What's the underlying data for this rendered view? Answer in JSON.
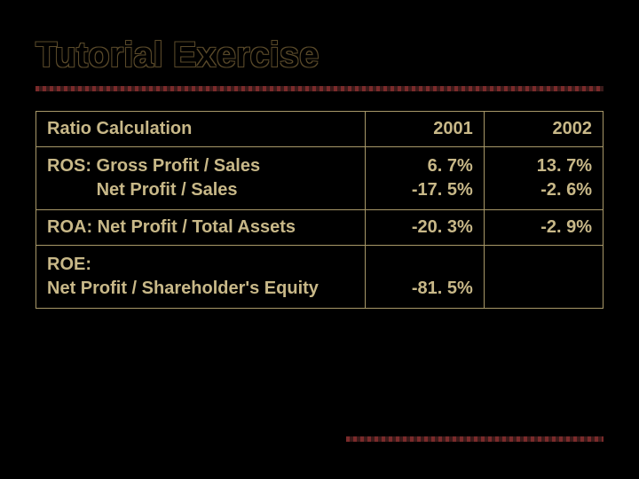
{
  "slide": {
    "title": "Tutorial Exercise",
    "background_color": "#000000",
    "title_color_fill": "#000000",
    "title_outline_color": "#5a4a2a",
    "text_color": "#c8b888",
    "border_color": "#a89868",
    "divider_color_a": "#7a2a2a",
    "divider_color_b": "#3a1a1a",
    "title_fontsize": 40,
    "cell_fontsize": 20
  },
  "table": {
    "columns": [
      "Ratio Calculation",
      "2001",
      "2002"
    ],
    "col_widths_pct": [
      58,
      21,
      21
    ],
    "rows": [
      {
        "label_line1": "ROS: Gross Profit / Sales",
        "label_line2": "          Net Profit / Sales",
        "y2001_line1": "6. 7%",
        "y2001_line2": "-17. 5%",
        "y2002_line1": "13. 7%",
        "y2002_line2": "-2. 6%"
      },
      {
        "label_line1": "ROA: Net Profit / Total Assets",
        "label_line2": "",
        "y2001_line1": "-20. 3%",
        "y2001_line2": "",
        "y2002_line1": "-2. 9%",
        "y2002_line2": ""
      },
      {
        "label_line1": "ROE:",
        "label_line2": "Net Profit / Shareholder's Equity",
        "y2001_line1": "",
        "y2001_line2": "-81. 5%",
        "y2002_line1": "",
        "y2002_line2": ""
      }
    ]
  }
}
